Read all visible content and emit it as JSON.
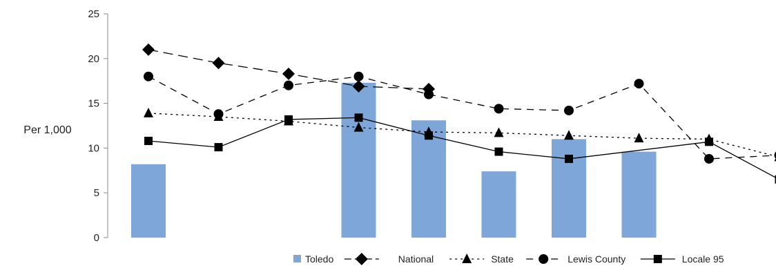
{
  "chart_data": {
    "type": "bar",
    "ylabel": "Per 1,000",
    "xlabel": "",
    "ylim": [
      0,
      25
    ],
    "yticks": [
      0,
      5,
      10,
      15,
      20,
      25
    ],
    "categories": [
      "",
      "",
      "",
      "",
      "",
      "",
      "",
      "",
      "",
      ""
    ],
    "series": [
      {
        "name": "Toledo",
        "kind": "bar",
        "color": "#7ea6d8",
        "values": [
          8.2,
          null,
          null,
          17.3,
          13.1,
          7.4,
          11.0,
          9.6,
          null,
          null
        ]
      },
      {
        "name": "National",
        "kind": "line",
        "marker": "diamond",
        "dash": "long-dash",
        "color": "#000000",
        "values": [
          21.0,
          19.5,
          18.3,
          16.9,
          16.6,
          null,
          null,
          null,
          null,
          null
        ]
      },
      {
        "name": "State",
        "kind": "line",
        "marker": "triangle",
        "dash": "dotted",
        "color": "#000000",
        "values": [
          13.9,
          13.5,
          13.0,
          12.3,
          11.8,
          11.7,
          11.4,
          11.1,
          11.0,
          9.0
        ]
      },
      {
        "name": "Lewis County",
        "kind": "line",
        "marker": "circle",
        "dash": "dashed",
        "color": "#000000",
        "values": [
          18.0,
          13.8,
          17.0,
          18.0,
          16.0,
          14.4,
          14.2,
          17.2,
          8.8,
          9.2
        ]
      },
      {
        "name": "Locale 95",
        "kind": "line",
        "marker": "square",
        "dash": "solid",
        "color": "#000000",
        "values": [
          10.8,
          10.1,
          13.2,
          13.4,
          11.4,
          9.6,
          8.8,
          null,
          10.7,
          6.5
        ]
      }
    ],
    "legend_position": "bottom-right",
    "grid": false
  }
}
